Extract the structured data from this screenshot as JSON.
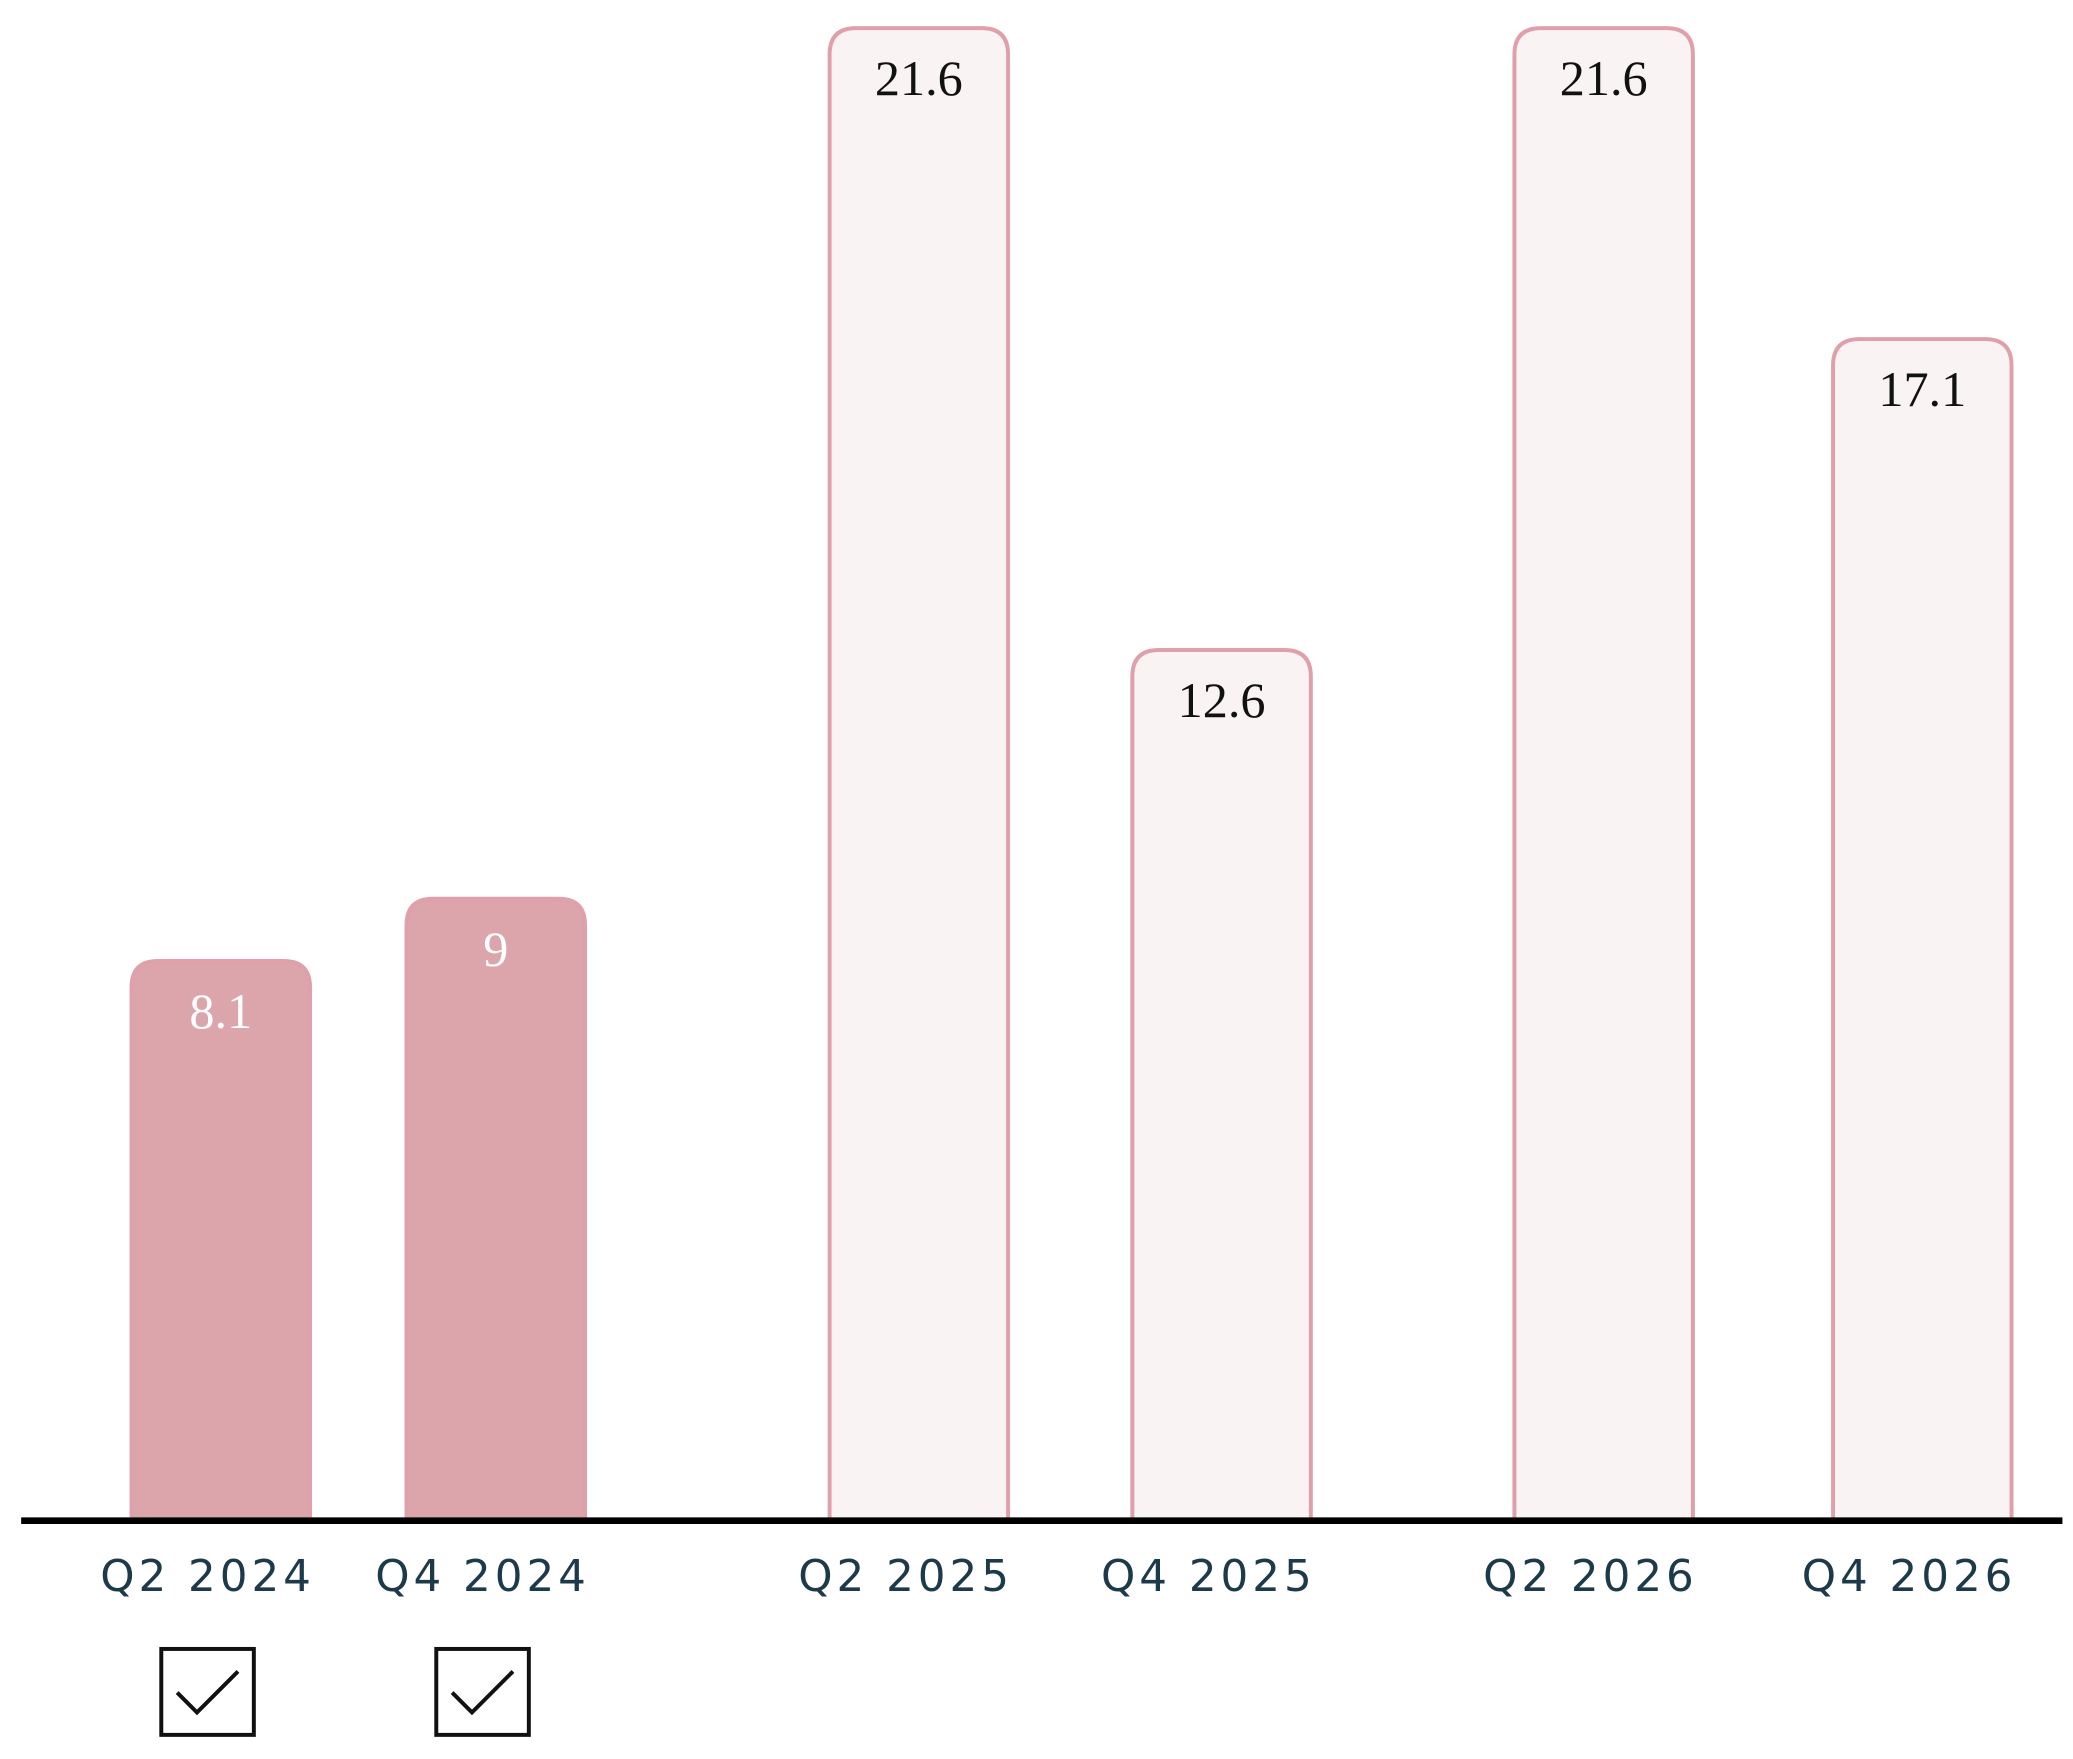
{
  "chart_data": {
    "type": "bar",
    "categories": [
      "Q2 2024",
      "Q4 2024",
      "Q2 2025",
      "Q4 2025",
      "Q2 2026",
      "Q4 2026"
    ],
    "values": [
      8.1,
      9,
      21.6,
      12.6,
      21.6,
      17.1
    ],
    "colors": [
      "#dca5ac",
      "#dca5ac",
      "#f9f3f3",
      "#f9f3f3",
      "#f9f3f3",
      "#f9f3f3"
    ],
    "edge_color": "#e0a0ab",
    "checked": [
      true,
      true,
      false,
      false,
      false,
      false
    ],
    "ylim": [
      0,
      21.6
    ]
  }
}
